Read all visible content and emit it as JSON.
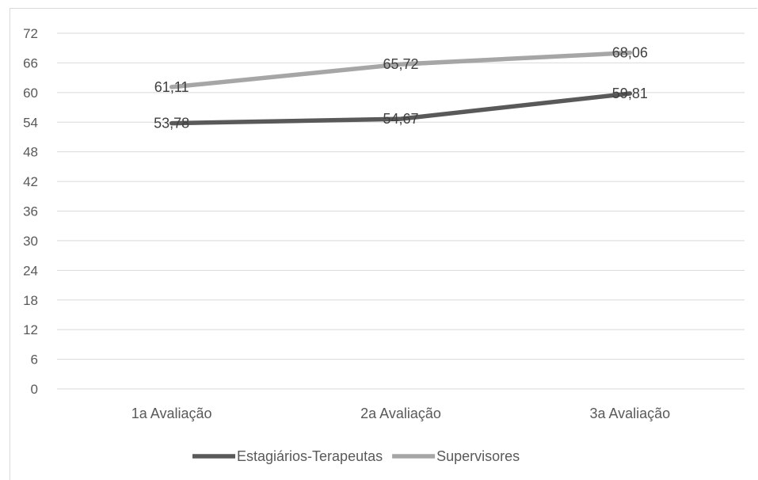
{
  "chart_data": {
    "type": "line",
    "title": "",
    "xlabel": "",
    "ylabel": "",
    "categories": [
      "1a Avaliação",
      "2a Avaliação",
      "3a Avaliação"
    ],
    "ylim": [
      0,
      72
    ],
    "yticks": [
      0,
      6,
      12,
      18,
      24,
      30,
      36,
      42,
      48,
      54,
      60,
      66,
      72
    ],
    "grid": true,
    "legend_position": "bottom",
    "series": [
      {
        "name": "Estagiários-Terapeutas",
        "values": [
          53.78,
          54.67,
          59.81
        ],
        "labels": [
          "53,78",
          "54,67",
          "59,81"
        ],
        "color": "#595959"
      },
      {
        "name": "Supervisores",
        "values": [
          61.11,
          65.72,
          68.06
        ],
        "labels": [
          "61,11",
          "65,72",
          "68,06"
        ],
        "color": "#a6a6a6"
      }
    ]
  }
}
